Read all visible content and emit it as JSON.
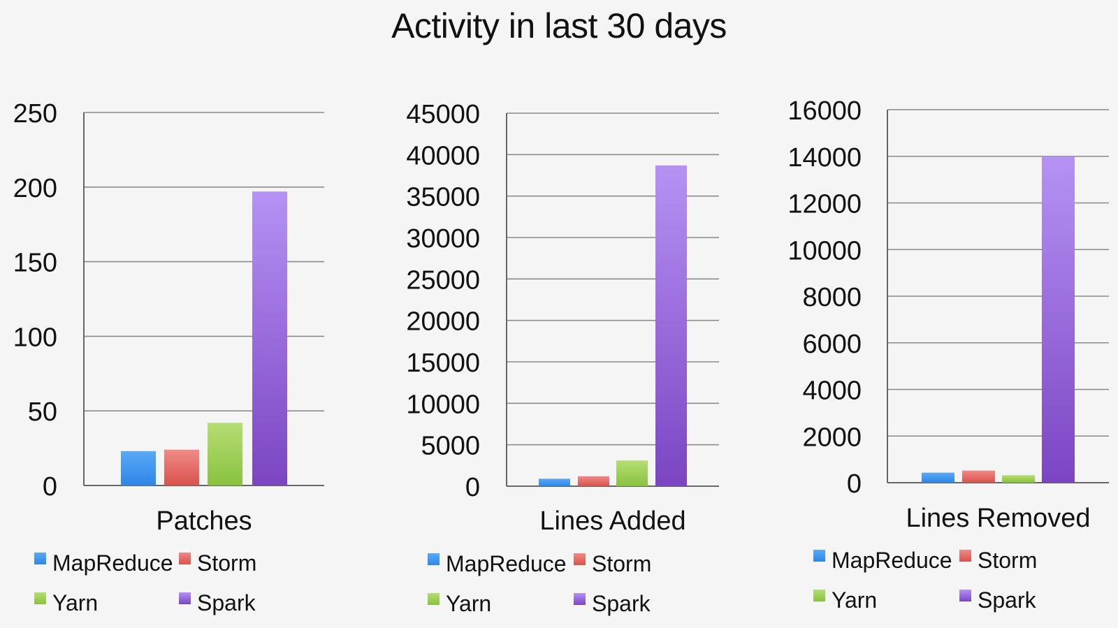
{
  "title": "Activity in last 30 days",
  "colors": {
    "MapReduce": {
      "top": "#5aa9f6",
      "bottom": "#2f86e8"
    },
    "Storm": {
      "top": "#f08a86",
      "bottom": "#d9524d"
    },
    "Yarn": {
      "top": "#b5dd74",
      "bottom": "#8ac23f"
    },
    "Spark": {
      "top": "#b592f4",
      "bottom": "#7b45c2"
    }
  },
  "chart_data": [
    {
      "type": "bar",
      "xlabel": "Patches",
      "categories": [
        "MapReduce",
        "Storm",
        "Yarn",
        "Spark"
      ],
      "values": [
        23,
        24,
        42,
        197
      ],
      "ylim": [
        0,
        250
      ],
      "yticks": [
        "250",
        "200",
        "150",
        "100",
        "50",
        "0"
      ],
      "grid": true,
      "legend": [
        "MapReduce",
        "Storm",
        "Yarn",
        "Spark"
      ],
      "legend_position": "bottom"
    },
    {
      "type": "bar",
      "xlabel": "Lines Added",
      "categories": [
        "MapReduce",
        "Storm",
        "Yarn",
        "Spark"
      ],
      "values": [
        900,
        1200,
        3100,
        38700
      ],
      "ylim": [
        0,
        45000
      ],
      "yticks": [
        "45000",
        "40000",
        "35000",
        "30000",
        "25000",
        "20000",
        "15000",
        "10000",
        "5000",
        "0"
      ],
      "grid": true,
      "legend": [
        "MapReduce",
        "Storm",
        "Yarn",
        "Spark"
      ],
      "legend_position": "bottom"
    },
    {
      "type": "bar",
      "xlabel": "Lines Removed",
      "categories": [
        "MapReduce",
        "Storm",
        "Yarn",
        "Spark"
      ],
      "values": [
        430,
        520,
        320,
        14000
      ],
      "ylim": [
        0,
        16000
      ],
      "yticks": [
        "16000",
        "14000",
        "12000",
        "10000",
        "8000",
        "6000",
        "4000",
        "2000",
        "0"
      ],
      "grid": true,
      "legend": [
        "MapReduce",
        "Storm",
        "Yarn",
        "Spark"
      ],
      "legend_position": "bottom"
    }
  ]
}
